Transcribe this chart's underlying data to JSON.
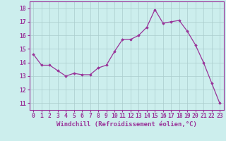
{
  "x": [
    0,
    1,
    2,
    3,
    4,
    5,
    6,
    7,
    8,
    9,
    10,
    11,
    12,
    13,
    14,
    15,
    16,
    17,
    18,
    19,
    20,
    21,
    22,
    23
  ],
  "y": [
    14.6,
    13.8,
    13.8,
    13.4,
    13.0,
    13.2,
    13.1,
    13.1,
    13.6,
    13.8,
    14.8,
    15.7,
    15.7,
    16.0,
    16.6,
    17.9,
    16.9,
    17.0,
    17.1,
    16.3,
    15.3,
    14.0,
    12.5,
    11.0
  ],
  "line_color": "#993399",
  "marker": "D",
  "marker_size": 1.8,
  "linewidth": 0.9,
  "xlabel": "Windchill (Refroidissement éolien,°C)",
  "xlabel_fontsize": 6.5,
  "ylabel_ticks": [
    11,
    12,
    13,
    14,
    15,
    16,
    17,
    18
  ],
  "xlim": [
    -0.5,
    23.5
  ],
  "ylim": [
    10.5,
    18.5
  ],
  "background_color": "#cceeed",
  "grid_color": "#aacccc",
  "tick_color": "#993399",
  "tick_fontsize": 5.8,
  "xtick_labels": [
    "0",
    "1",
    "2",
    "3",
    "4",
    "5",
    "6",
    "7",
    "8",
    "9",
    "10",
    "11",
    "12",
    "13",
    "14",
    "15",
    "16",
    "17",
    "18",
    "19",
    "20",
    "21",
    "22",
    "23"
  ]
}
